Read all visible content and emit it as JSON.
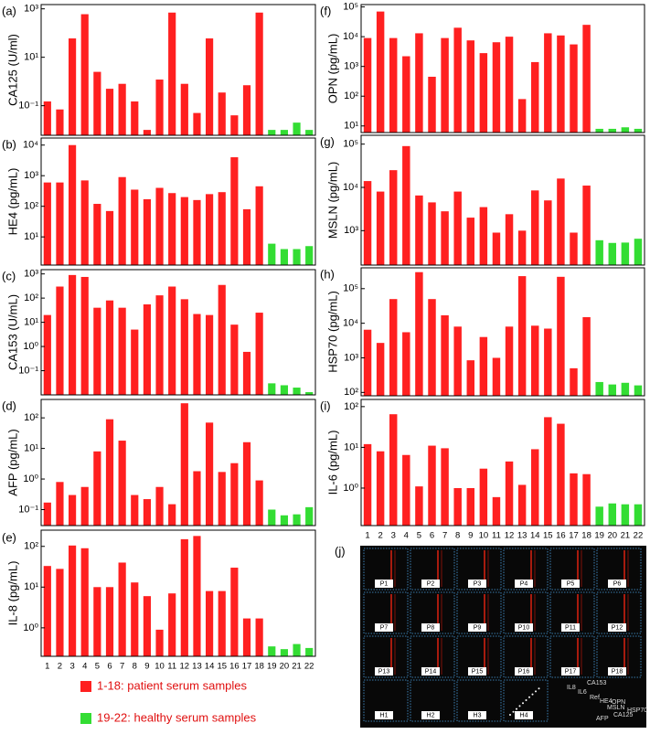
{
  "chart_data": [
    {
      "type": "bar",
      "panel": "(a)",
      "ylabel": "CA125 (U/ml)",
      "log_scale": true,
      "categories": [
        "1",
        "2",
        "3",
        "4",
        "5",
        "6",
        "7",
        "8",
        "9",
        "10",
        "11",
        "12",
        "13",
        "14",
        "15",
        "16",
        "17",
        "18",
        "19",
        "20",
        "21",
        "22"
      ],
      "values": [
        0.15,
        0.07,
        60,
        600,
        2.5,
        0.5,
        0.8,
        0.15,
        0.01,
        1.2,
        700,
        0.8,
        0.05,
        60,
        0.35,
        0.04,
        0.7,
        700,
        0.01,
        0.01,
        0.02,
        0.01
      ],
      "colors": [
        "#ff2020",
        "#ff2020",
        "#ff2020",
        "#ff2020",
        "#ff2020",
        "#ff2020",
        "#ff2020",
        "#ff2020",
        "#ff2020",
        "#ff2020",
        "#ff2020",
        "#ff2020",
        "#ff2020",
        "#ff2020",
        "#ff2020",
        "#ff2020",
        "#ff2020",
        "#ff2020",
        "#33dd33",
        "#33dd33",
        "#33dd33",
        "#33dd33"
      ],
      "ylim": [
        0.006,
        1500
      ],
      "yticks": [
        {
          "value": 0.1,
          "label": "10⁻¹"
        },
        {
          "value": 10,
          "label": "10¹"
        },
        {
          "value": 1000,
          "label": "10³"
        }
      ]
    },
    {
      "type": "bar",
      "panel": "(b)",
      "ylabel": "HE4 (pg/mL)",
      "log_scale": true,
      "categories": [
        "1",
        "2",
        "3",
        "4",
        "5",
        "6",
        "7",
        "8",
        "9",
        "10",
        "11",
        "12",
        "13",
        "14",
        "15",
        "16",
        "17",
        "18",
        "19",
        "20",
        "21",
        "22"
      ],
      "values": [
        600,
        600,
        10000,
        700,
        120,
        70,
        900,
        350,
        170,
        400,
        270,
        200,
        160,
        250,
        290,
        4000,
        80,
        450,
        6,
        4,
        4,
        5
      ],
      "colors": [
        "#ff2020",
        "#ff2020",
        "#ff2020",
        "#ff2020",
        "#ff2020",
        "#ff2020",
        "#ff2020",
        "#ff2020",
        "#ff2020",
        "#ff2020",
        "#ff2020",
        "#ff2020",
        "#ff2020",
        "#ff2020",
        "#ff2020",
        "#ff2020",
        "#ff2020",
        "#ff2020",
        "#33dd33",
        "#33dd33",
        "#33dd33",
        "#33dd33"
      ],
      "ylim": [
        1.2,
        17000
      ],
      "yticks": [
        {
          "value": 10,
          "label": "10¹"
        },
        {
          "value": 100,
          "label": "10²"
        },
        {
          "value": 1000,
          "label": "10³"
        },
        {
          "value": 10000,
          "label": "10⁴"
        }
      ]
    },
    {
      "type": "bar",
      "panel": "(c)",
      "ylabel": "CA153 (U/mL)",
      "log_scale": true,
      "categories": [
        "1",
        "2",
        "3",
        "4",
        "5",
        "6",
        "7",
        "8",
        "9",
        "10",
        "11",
        "12",
        "13",
        "14",
        "15",
        "16",
        "17",
        "18",
        "19",
        "20",
        "21",
        "22"
      ],
      "values": [
        20,
        300,
        900,
        750,
        40,
        80,
        40,
        5,
        55,
        130,
        300,
        90,
        22,
        20,
        350,
        8,
        0.6,
        25,
        0.03,
        0.025,
        0.02,
        0.013
      ],
      "colors": [
        "#ff2020",
        "#ff2020",
        "#ff2020",
        "#ff2020",
        "#ff2020",
        "#ff2020",
        "#ff2020",
        "#ff2020",
        "#ff2020",
        "#ff2020",
        "#ff2020",
        "#ff2020",
        "#ff2020",
        "#ff2020",
        "#ff2020",
        "#ff2020",
        "#ff2020",
        "#ff2020",
        "#33dd33",
        "#33dd33",
        "#33dd33",
        "#33dd33"
      ],
      "ylim": [
        0.01,
        1500
      ],
      "yticks": [
        {
          "value": 0.1,
          "label": "10⁻¹"
        },
        {
          "value": 1,
          "label": "10⁰"
        },
        {
          "value": 10,
          "label": "10¹"
        },
        {
          "value": 100,
          "label": "10²"
        },
        {
          "value": 1000,
          "label": "10³"
        }
      ]
    },
    {
      "type": "bar",
      "panel": "(d)",
      "ylabel": "AFP (pg/mL)",
      "log_scale": true,
      "categories": [
        "1",
        "2",
        "3",
        "4",
        "5",
        "6",
        "7",
        "8",
        "9",
        "10",
        "11",
        "12",
        "13",
        "14",
        "15",
        "16",
        "17",
        "18",
        "19",
        "20",
        "21",
        "22"
      ],
      "values": [
        0.17,
        0.8,
        0.3,
        0.55,
        8,
        90,
        18,
        0.3,
        0.22,
        0.55,
        0.15,
        300,
        1.8,
        70,
        1.7,
        3.3,
        16,
        0.9,
        0.1,
        0.065,
        0.07,
        0.12
      ],
      "colors": [
        "#ff2020",
        "#ff2020",
        "#ff2020",
        "#ff2020",
        "#ff2020",
        "#ff2020",
        "#ff2020",
        "#ff2020",
        "#ff2020",
        "#ff2020",
        "#ff2020",
        "#ff2020",
        "#ff2020",
        "#ff2020",
        "#ff2020",
        "#ff2020",
        "#ff2020",
        "#ff2020",
        "#33dd33",
        "#33dd33",
        "#33dd33",
        "#33dd33"
      ],
      "ylim": [
        0.03,
        400
      ],
      "yticks": [
        {
          "value": 0.1,
          "label": "10⁻¹"
        },
        {
          "value": 1,
          "label": "10⁰"
        },
        {
          "value": 10,
          "label": "10¹"
        },
        {
          "value": 100,
          "label": "10²"
        }
      ]
    },
    {
      "type": "bar",
      "panel": "",
      "ylabel": "IL-8 (pg/mL)",
      "log_scale": true,
      "categories": [
        "1",
        "2",
        "3",
        "4",
        "5",
        "6",
        "7",
        "8",
        "9",
        "10",
        "11",
        "12",
        "13",
        "14",
        "15",
        "16",
        "17",
        "18",
        "19",
        "20",
        "21",
        "22"
      ],
      "values": [
        33,
        28,
        105,
        90,
        10,
        10,
        40,
        13,
        6,
        0.9,
        7,
        150,
        180,
        8,
        8,
        30,
        1.7,
        1.7,
        0.35,
        0.3,
        0.4,
        0.32
      ],
      "colors": [
        "#ff2020",
        "#ff2020",
        "#ff2020",
        "#ff2020",
        "#ff2020",
        "#ff2020",
        "#ff2020",
        "#ff2020",
        "#ff2020",
        "#ff2020",
        "#ff2020",
        "#ff2020",
        "#ff2020",
        "#ff2020",
        "#ff2020",
        "#ff2020",
        "#ff2020",
        "#ff2020",
        "#33dd33",
        "#33dd33",
        "#33dd33",
        "#33dd33"
      ],
      "ylim": [
        0.2,
        250
      ],
      "yticks": [
        {
          "value": 1,
          "label": "10⁰"
        },
        {
          "value": 10,
          "label": "10¹"
        },
        {
          "value": 100,
          "label": "10²"
        }
      ]
    },
    {
      "type": "bar",
      "panel": "(f)",
      "ylabel": "OPN (pg/mL)",
      "log_scale": true,
      "categories": [
        "1",
        "2",
        "3",
        "4",
        "5",
        "6",
        "7",
        "8",
        "9",
        "10",
        "11",
        "12",
        "13",
        "14",
        "15",
        "16",
        "17",
        "18",
        "19",
        "20",
        "21",
        "22"
      ],
      "values": [
        9000,
        70000,
        9000,
        2200,
        13000,
        450,
        9000,
        20000,
        7500,
        2800,
        6500,
        10000,
        80,
        1400,
        13000,
        11000,
        5500,
        25000,
        8,
        8,
        9,
        8
      ],
      "colors": [
        "#ff2020",
        "#ff2020",
        "#ff2020",
        "#ff2020",
        "#ff2020",
        "#ff2020",
        "#ff2020",
        "#ff2020",
        "#ff2020",
        "#ff2020",
        "#ff2020",
        "#ff2020",
        "#ff2020",
        "#ff2020",
        "#ff2020",
        "#ff2020",
        "#ff2020",
        "#ff2020",
        "#33dd33",
        "#33dd33",
        "#33dd33",
        "#33dd33"
      ],
      "ylim": [
        6,
        120000
      ],
      "yticks": [
        {
          "value": 10,
          "label": "10¹"
        },
        {
          "value": 100,
          "label": "10²"
        },
        {
          "value": 1000,
          "label": "10³"
        },
        {
          "value": 10000,
          "label": "10⁴"
        },
        {
          "value": 100000,
          "label": "10⁵"
        }
      ]
    },
    {
      "type": "bar",
      "panel": "(g)",
      "ylabel": "MSLN (pg/mL)",
      "log_scale": true,
      "categories": [
        "1",
        "2",
        "3",
        "4",
        "5",
        "6",
        "7",
        "8",
        "9",
        "10",
        "11",
        "12",
        "13",
        "14",
        "15",
        "16",
        "17",
        "18",
        "19",
        "20",
        "21",
        "22"
      ],
      "values": [
        14000,
        8000,
        25000,
        90000,
        6500,
        4500,
        2800,
        8000,
        2000,
        3500,
        900,
        2400,
        1000,
        8500,
        5000,
        16000,
        900,
        11000,
        600,
        520,
        530,
        650
      ],
      "colors": [
        "#ff2020",
        "#ff2020",
        "#ff2020",
        "#ff2020",
        "#ff2020",
        "#ff2020",
        "#ff2020",
        "#ff2020",
        "#ff2020",
        "#ff2020",
        "#ff2020",
        "#ff2020",
        "#ff2020",
        "#ff2020",
        "#ff2020",
        "#ff2020",
        "#ff2020",
        "#ff2020",
        "#33dd33",
        "#33dd33",
        "#33dd33",
        "#33dd33"
      ],
      "ylim": [
        160,
        160000
      ],
      "yticks": [
        {
          "value": 1000,
          "label": "10³"
        },
        {
          "value": 10000,
          "label": "10⁴"
        },
        {
          "value": 100000,
          "label": "10⁵"
        }
      ]
    },
    {
      "type": "bar",
      "panel": "(h)",
      "ylabel": "HSP70 (pg/mL)",
      "log_scale": true,
      "categories": [
        "1",
        "2",
        "3",
        "4",
        "5",
        "6",
        "7",
        "8",
        "9",
        "10",
        "11",
        "12",
        "13",
        "14",
        "15",
        "16",
        "17",
        "18",
        "19",
        "20",
        "21",
        "22"
      ],
      "values": [
        6500,
        2700,
        50000,
        5500,
        300000,
        50000,
        17000,
        8000,
        850,
        4000,
        1000,
        8000,
        230000,
        8500,
        7000,
        220000,
        500,
        15000,
        200,
        170,
        190,
        160
      ],
      "colors": [
        "#ff2020",
        "#ff2020",
        "#ff2020",
        "#ff2020",
        "#ff2020",
        "#ff2020",
        "#ff2020",
        "#ff2020",
        "#ff2020",
        "#ff2020",
        "#ff2020",
        "#ff2020",
        "#ff2020",
        "#ff2020",
        "#ff2020",
        "#ff2020",
        "#ff2020",
        "#ff2020",
        "#33dd33",
        "#33dd33",
        "#33dd33",
        "#33dd33"
      ],
      "ylim": [
        80,
        400000
      ],
      "yticks": [
        {
          "value": 100,
          "label": "10²"
        },
        {
          "value": 1000,
          "label": "10³"
        },
        {
          "value": 10000,
          "label": "10⁴"
        },
        {
          "value": 100000,
          "label": "10⁵"
        }
      ]
    },
    {
      "type": "bar",
      "panel": "(i)",
      "ylabel": "IL-6 (pg/mL)",
      "log_scale": true,
      "categories": [
        "1",
        "2",
        "3",
        "4",
        "5",
        "6",
        "7",
        "8",
        "9",
        "10",
        "11",
        "12",
        "13",
        "14",
        "15",
        "16",
        "17",
        "18",
        "19",
        "20",
        "21",
        "22"
      ],
      "values": [
        12,
        8,
        65,
        6.5,
        1.1,
        11,
        9.5,
        1,
        1,
        3,
        0.6,
        4.5,
        1.2,
        9,
        55,
        38,
        2.3,
        2.2,
        0.35,
        0.42,
        0.4,
        0.4
      ],
      "colors": [
        "#ff2020",
        "#ff2020",
        "#ff2020",
        "#ff2020",
        "#ff2020",
        "#ff2020",
        "#ff2020",
        "#ff2020",
        "#ff2020",
        "#ff2020",
        "#ff2020",
        "#ff2020",
        "#ff2020",
        "#ff2020",
        "#ff2020",
        "#ff2020",
        "#ff2020",
        "#ff2020",
        "#33dd33",
        "#33dd33",
        "#33dd33",
        "#33dd33"
      ],
      "ylim": [
        0.12,
        150
      ],
      "yticks": [
        {
          "value": 1,
          "label": "10⁰"
        },
        {
          "value": 10,
          "label": "10¹"
        },
        {
          "value": 100,
          "label": "10²"
        }
      ]
    }
  ],
  "legend": [
    {
      "name": "1-18: patient serum samples",
      "color": "#ff2020"
    },
    {
      "name": "19-22: healthy serum samples",
      "color": "#33dd33"
    }
  ],
  "panel_e_label": "(e)",
  "panel_j": {
    "label": "(j)",
    "wells": [
      "P1",
      "P2",
      "P3",
      "P4",
      "P5",
      "P6",
      "P7",
      "P8",
      "P9",
      "P10",
      "P11",
      "P12",
      "P13",
      "P14",
      "P15",
      "P16",
      "P17",
      "P18",
      "H1",
      "H2",
      "H3",
      "H4"
    ],
    "spot_labels": [
      "IL8",
      "CA153",
      "IL6",
      "Ref",
      "HE4",
      "OPN",
      "MSLN",
      "HSP70",
      "CA125",
      "AFP"
    ]
  }
}
